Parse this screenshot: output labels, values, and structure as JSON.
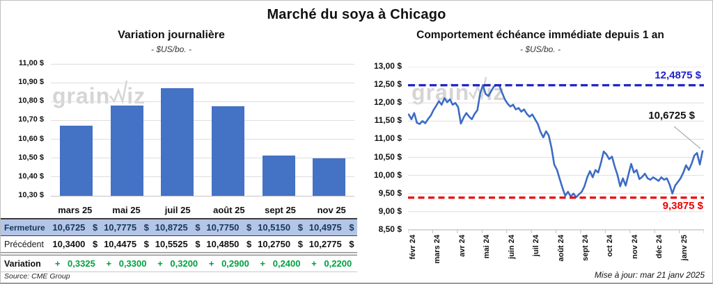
{
  "page": {
    "main_title": "Marché du soya à Chicago",
    "source_note": "Source: CME Group",
    "update_note": "Mise à jour: mar 21 janv 2025"
  },
  "watermark": {
    "pre": "grain",
    "post": "iz"
  },
  "colors": {
    "bar_blue": "#4472C4",
    "line_blue": "#3C6CC4",
    "resistance_blue": "#2020C8",
    "support_red": "#EE0000",
    "variation_green": "#00A040",
    "fermeture_bg": "#B4C6E7",
    "fermeture_text": "#17375E",
    "gridline": "#DEDEDE",
    "watermark_gray": "#D5D5D5"
  },
  "chart_data": [
    {
      "type": "bar",
      "title": "Variation journalière",
      "subtitle": "- $US/bo. -",
      "categories": [
        "mars 25",
        "mai 25",
        "juil 25",
        "août 25",
        "sept 25",
        "nov 25"
      ],
      "values": [
        10.6725,
        10.7775,
        10.8725,
        10.775,
        10.515,
        10.4975
      ],
      "ylim": [
        10.3,
        11.0
      ],
      "ytick_step": 0.1,
      "ytick_labels": [
        "11,00 $",
        "10,90 $",
        "10,80 $",
        "10,70 $",
        "10,60 $",
        "10,50 $",
        "10,40 $",
        "10,30 $"
      ],
      "grid": true,
      "legend": "none"
    },
    {
      "type": "line",
      "title": "Comportement échéance immédiate depuis 1 an",
      "subtitle": "- $US/bo. -",
      "x_labels": [
        "févr 24",
        "mars 24",
        "avr 24",
        "mai 24",
        "juin 24",
        "juil 24",
        "août 24",
        "sept 24",
        "oct 24",
        "nov 24",
        "déc 24",
        "janv 25"
      ],
      "ylim": [
        8.5,
        13.0
      ],
      "ytick_step": 0.5,
      "ytick_labels": [
        "13,00 $",
        "12,50 $",
        "12,00 $",
        "11,50 $",
        "11,00 $",
        "10,50 $",
        "10,00 $",
        "9,50 $",
        "9,00 $",
        "8,50 $"
      ],
      "grid": true,
      "legend": "none",
      "upper_line": {
        "value": 12.4875,
        "label": "12,4875 $",
        "style": "dashed"
      },
      "lower_line": {
        "value": 9.3875,
        "label": "9,3875 $",
        "style": "dashed"
      },
      "last_point_label": "10,6725 $",
      "series": [
        {
          "values": [
            11.68,
            11.55,
            11.72,
            11.45,
            11.42,
            11.5,
            11.44,
            11.55,
            11.65,
            11.8,
            11.92,
            12.05,
            11.95,
            12.13,
            12.02,
            12.1,
            11.95,
            12.0,
            11.88,
            11.43,
            11.6,
            11.72,
            11.62,
            11.55,
            11.7,
            11.8,
            12.25,
            12.49,
            12.25,
            12.19,
            12.32,
            12.45,
            12.49,
            12.48,
            12.28,
            12.1,
            11.98,
            11.9,
            11.95,
            11.82,
            11.86,
            11.76,
            11.82,
            11.7,
            11.62,
            11.68,
            11.55,
            11.42,
            11.2,
            11.05,
            11.22,
            11.1,
            10.76,
            10.3,
            10.15,
            9.9,
            9.65,
            9.44,
            9.55,
            9.42,
            9.5,
            9.4,
            9.48,
            9.55,
            9.7,
            9.95,
            10.12,
            9.95,
            10.15,
            10.08,
            10.35,
            10.66,
            10.58,
            10.45,
            10.52,
            10.25,
            10.02,
            9.7,
            9.92,
            9.72,
            10.02,
            10.32,
            10.08,
            10.15,
            9.9,
            9.96,
            10.05,
            9.92,
            9.88,
            9.95,
            9.9,
            9.85,
            9.95,
            9.88,
            9.92,
            9.75,
            9.5,
            9.72,
            9.82,
            9.92,
            10.08,
            10.28,
            10.15,
            10.32,
            10.55,
            10.62,
            10.3,
            10.6725
          ]
        }
      ]
    }
  ],
  "table": {
    "columns": [
      "mars 25",
      "mai 25",
      "juil 25",
      "août 25",
      "sept 25",
      "nov 25"
    ],
    "rows": [
      {
        "label": "Fermeture",
        "values": [
          "10,6725 $",
          "10,7775 $",
          "10,8725 $",
          "10,7750 $",
          "10,5150 $",
          "10,4975 $"
        ]
      },
      {
        "label": "Précédent",
        "values": [
          "10,3400 $",
          "10,4475 $",
          "10,5525 $",
          "10,4850 $",
          "10,2750 $",
          "10,2775 $"
        ]
      },
      {
        "label": "Variation",
        "values": [
          "+ 0,3325",
          "+ 0,3300",
          "+ 0,3200",
          "+ 0,2900",
          "+ 0,2400",
          "+ 0,2200"
        ]
      }
    ]
  }
}
